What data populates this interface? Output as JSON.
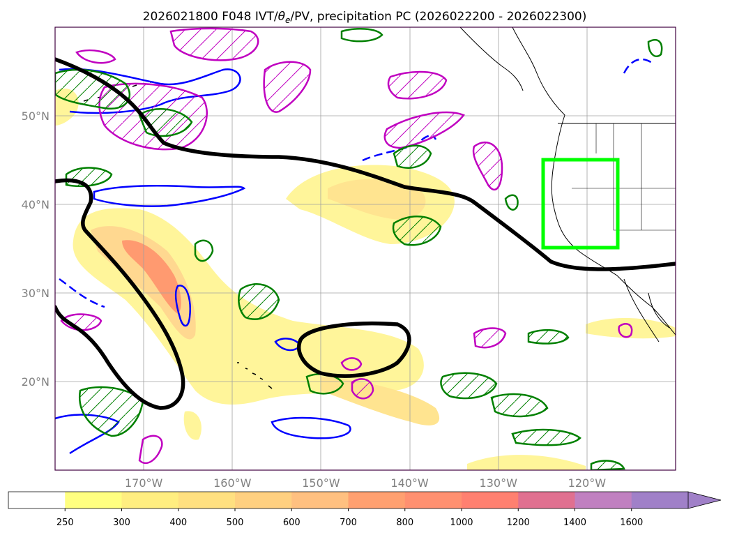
{
  "chart_data": {
    "type": "map-contour",
    "title_prefix": "2026021800 F048 IVT/",
    "title_theta": "θ",
    "title_theta_sub": "e",
    "title_suffix": "/PV, precipitation PC (2026022200 - 2026022300)",
    "x_axis": {
      "lon_range": [
        -180,
        -110
      ],
      "ticks": [
        {
          "lon": -170,
          "label": "170°W"
        },
        {
          "lon": -160,
          "label": "160°W"
        },
        {
          "lon": -150,
          "label": "150°W"
        },
        {
          "lon": -140,
          "label": "140°W"
        },
        {
          "lon": -130,
          "label": "130°W"
        },
        {
          "lon": -120,
          "label": "120°W"
        }
      ]
    },
    "y_axis": {
      "lat_range": [
        10,
        60
      ],
      "ticks": [
        {
          "lat": 20,
          "label": "20°N"
        },
        {
          "lat": 30,
          "label": "30°N"
        },
        {
          "lat": 40,
          "label": "40°N"
        },
        {
          "lat": 50,
          "label": "50°N"
        }
      ]
    },
    "grid": true,
    "colorbar": {
      "extend": "max",
      "levels": [
        "250",
        "300",
        "400",
        "500",
        "600",
        "700",
        "800",
        "1000",
        "1200",
        "1400",
        "1600"
      ],
      "colors": [
        "#ffffff",
        "#ffff80",
        "#ffee80",
        "#ffe080",
        "#ffd080",
        "#ffc080",
        "#ffa070",
        "#ff9070",
        "#ff8070",
        "#e07090",
        "#c080c0",
        "#a080c8"
      ]
    },
    "highlight_box": {
      "lon": [
        -125,
        -117
      ],
      "lat": [
        35,
        45
      ],
      "color": "#00ff00"
    },
    "contour_colors": {
      "ivt_axis": "#000000",
      "theta_e": "#008000",
      "pv": "#0000ff",
      "precip_pc": "#c000c0"
    }
  }
}
